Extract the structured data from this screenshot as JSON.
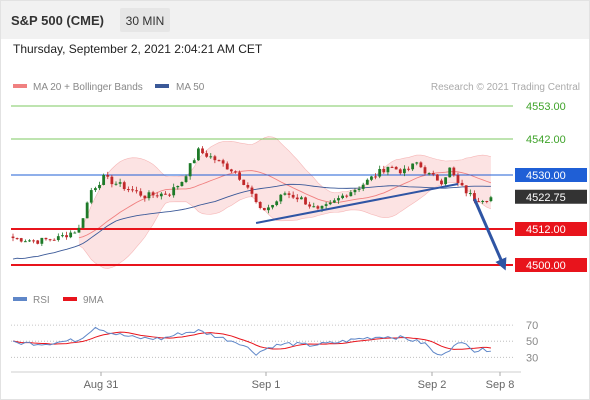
{
  "header": {
    "title": "S&P 500 (CME)",
    "timeframe": "30 MIN",
    "datetime": "Thursday, September 2, 2021 2:04:21 AM CET"
  },
  "legend": {
    "bb_label": "MA 20 + Bollinger Bands",
    "ma50_label": "MA 50",
    "credit": "Research © 2021 Trading Central",
    "rsi_label": "RSI",
    "ma9_label": "9MA"
  },
  "colors": {
    "bollinger": "#f08080",
    "bollinger_fill": "#fbdada",
    "ma50": "#3b5998",
    "up_candle": "#1e7a28",
    "down_candle": "#c0282a",
    "resistance_green": "#7ec860",
    "pivot_blue": "#1f5fd6",
    "support_red": "#e8141c",
    "price_tag": "#333333",
    "trend_arrow": "#2f55a4",
    "rsi": "#5f87c8",
    "rsi_ma": "#e8141c"
  },
  "chart_data": [
    {
      "type": "candlestick",
      "title": "S&P 500 (CME)",
      "timeframe": "30 MIN",
      "x_ticks": [
        "Aug 31",
        "Sep 1",
        "Sep 2",
        "Sep 8"
      ],
      "y_range": [
        4493,
        4558
      ],
      "levels": [
        {
          "value": 4553.0,
          "label": "4553.00",
          "kind": "resistance",
          "color": "#7ec860"
        },
        {
          "value": 4542.0,
          "label": "4542.00",
          "kind": "resistance",
          "color": "#7ec860"
        },
        {
          "value": 4530.0,
          "label": "4530.00",
          "kind": "pivot",
          "color": "#1f5fd6"
        },
        {
          "value": 4512.0,
          "label": "4512.00",
          "kind": "support",
          "color": "#e8141c"
        },
        {
          "value": 4500.0,
          "label": "4500.00",
          "kind": "support",
          "color": "#e8141c"
        }
      ],
      "last_price": {
        "value": 4522.75,
        "label": "4522.75"
      },
      "anchors": [
        [
          0,
          4509.0
        ],
        [
          6,
          4508.0
        ],
        [
          11,
          4509.0
        ],
        [
          16,
          4512.0
        ],
        [
          19,
          4525.0
        ],
        [
          22,
          4529.0
        ],
        [
          27,
          4526.0
        ],
        [
          32,
          4523.0
        ],
        [
          38,
          4524.0
        ],
        [
          41,
          4528.0
        ],
        [
          45,
          4538.0
        ],
        [
          48,
          4536.0
        ],
        [
          54,
          4531.0
        ],
        [
          57,
          4526.0
        ],
        [
          60,
          4518.0
        ],
        [
          63,
          4520.0
        ],
        [
          66,
          4524.0
        ],
        [
          70,
          4522.0
        ],
        [
          74,
          4518.0
        ],
        [
          77,
          4520.0
        ],
        [
          81,
          4524.0
        ],
        [
          84,
          4526.0
        ],
        [
          88,
          4530.0
        ],
        [
          91,
          4533.0
        ],
        [
          95,
          4531.0
        ],
        [
          98,
          4534.0
        ],
        [
          101,
          4530.0
        ],
        [
          104,
          4528.0
        ],
        [
          106,
          4532.0
        ],
        [
          108,
          4527.0
        ],
        [
          112,
          4522.0
        ],
        [
          116,
          4522.5
        ]
      ],
      "trendline": [
        [
          59,
          4514.0
        ],
        [
          108,
          4527.0
        ]
      ],
      "projection": [
        [
          112,
          4522.0
        ],
        [
          119,
          4500.0
        ]
      ],
      "series": [
        {
          "name": "MA 20 + Bollinger Bands",
          "kind": "bollinger"
        },
        {
          "name": "MA 50",
          "kind": "moving_average"
        }
      ]
    },
    {
      "type": "line",
      "title": "RSI",
      "y_ticks": [
        70,
        50,
        30
      ],
      "y_range": [
        18,
        85
      ],
      "anchors": [
        [
          0,
          48
        ],
        [
          8,
          47
        ],
        [
          16,
          52
        ],
        [
          20,
          68
        ],
        [
          24,
          60
        ],
        [
          30,
          54
        ],
        [
          36,
          53
        ],
        [
          41,
          60
        ],
        [
          45,
          63
        ],
        [
          50,
          55
        ],
        [
          55,
          48
        ],
        [
          59,
          35
        ],
        [
          63,
          44
        ],
        [
          67,
          47
        ],
        [
          72,
          45
        ],
        [
          78,
          48
        ],
        [
          84,
          53
        ],
        [
          90,
          56
        ],
        [
          95,
          54
        ],
        [
          100,
          47
        ],
        [
          103,
          32
        ],
        [
          108,
          46
        ],
        [
          110,
          49
        ],
        [
          112,
          38
        ],
        [
          116,
          40
        ]
      ],
      "series": [
        {
          "name": "RSI",
          "color": "#5f87c8"
        },
        {
          "name": "9MA",
          "color": "#e8141c"
        }
      ]
    }
  ]
}
